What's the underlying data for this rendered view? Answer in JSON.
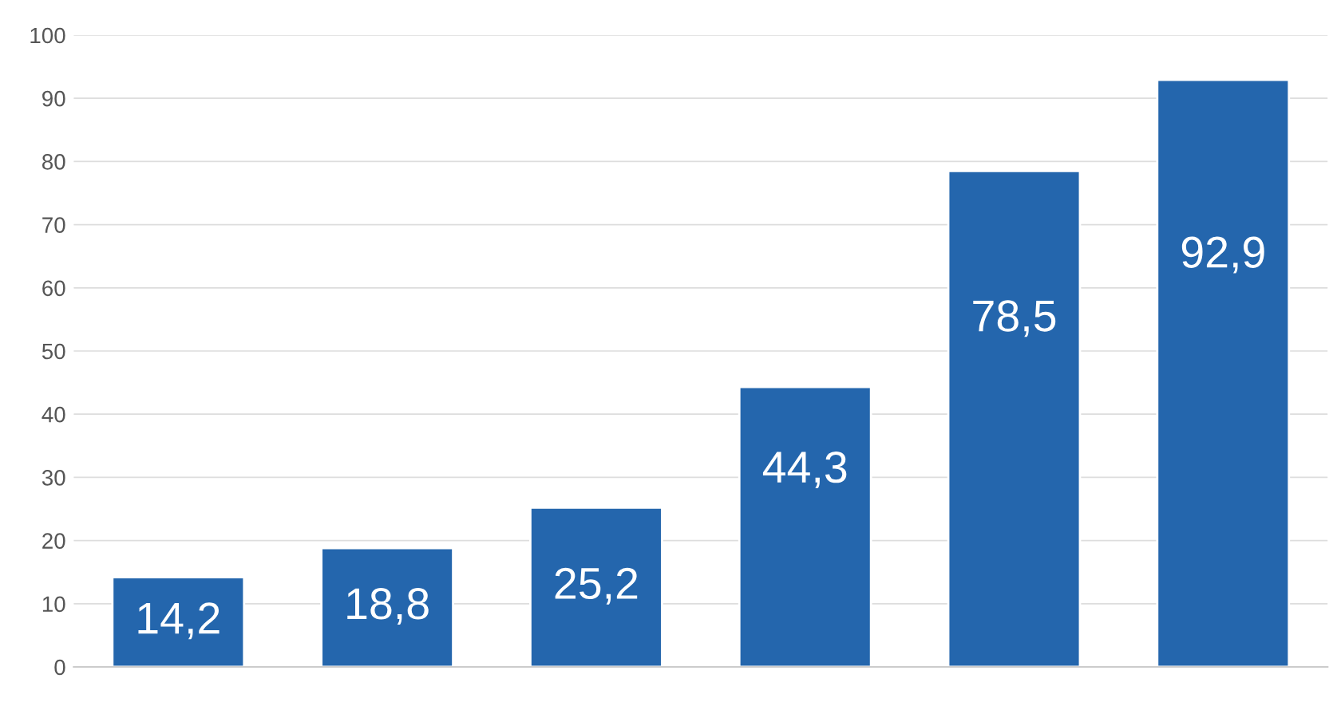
{
  "chart_data": {
    "type": "bar",
    "categories": [
      null,
      null,
      null,
      null,
      null,
      null
    ],
    "values": [
      14.2,
      18.8,
      25.2,
      44.3,
      78.5,
      92.9
    ],
    "value_labels": [
      "14,2",
      "18,8",
      "25,2",
      "44,3",
      "78,5",
      "92,9"
    ],
    "color": "#2466ad",
    "ylim": [
      0,
      100
    ],
    "yticks": [
      0,
      10,
      20,
      30,
      40,
      50,
      60,
      70,
      80,
      90,
      100
    ],
    "grid": "y"
  }
}
